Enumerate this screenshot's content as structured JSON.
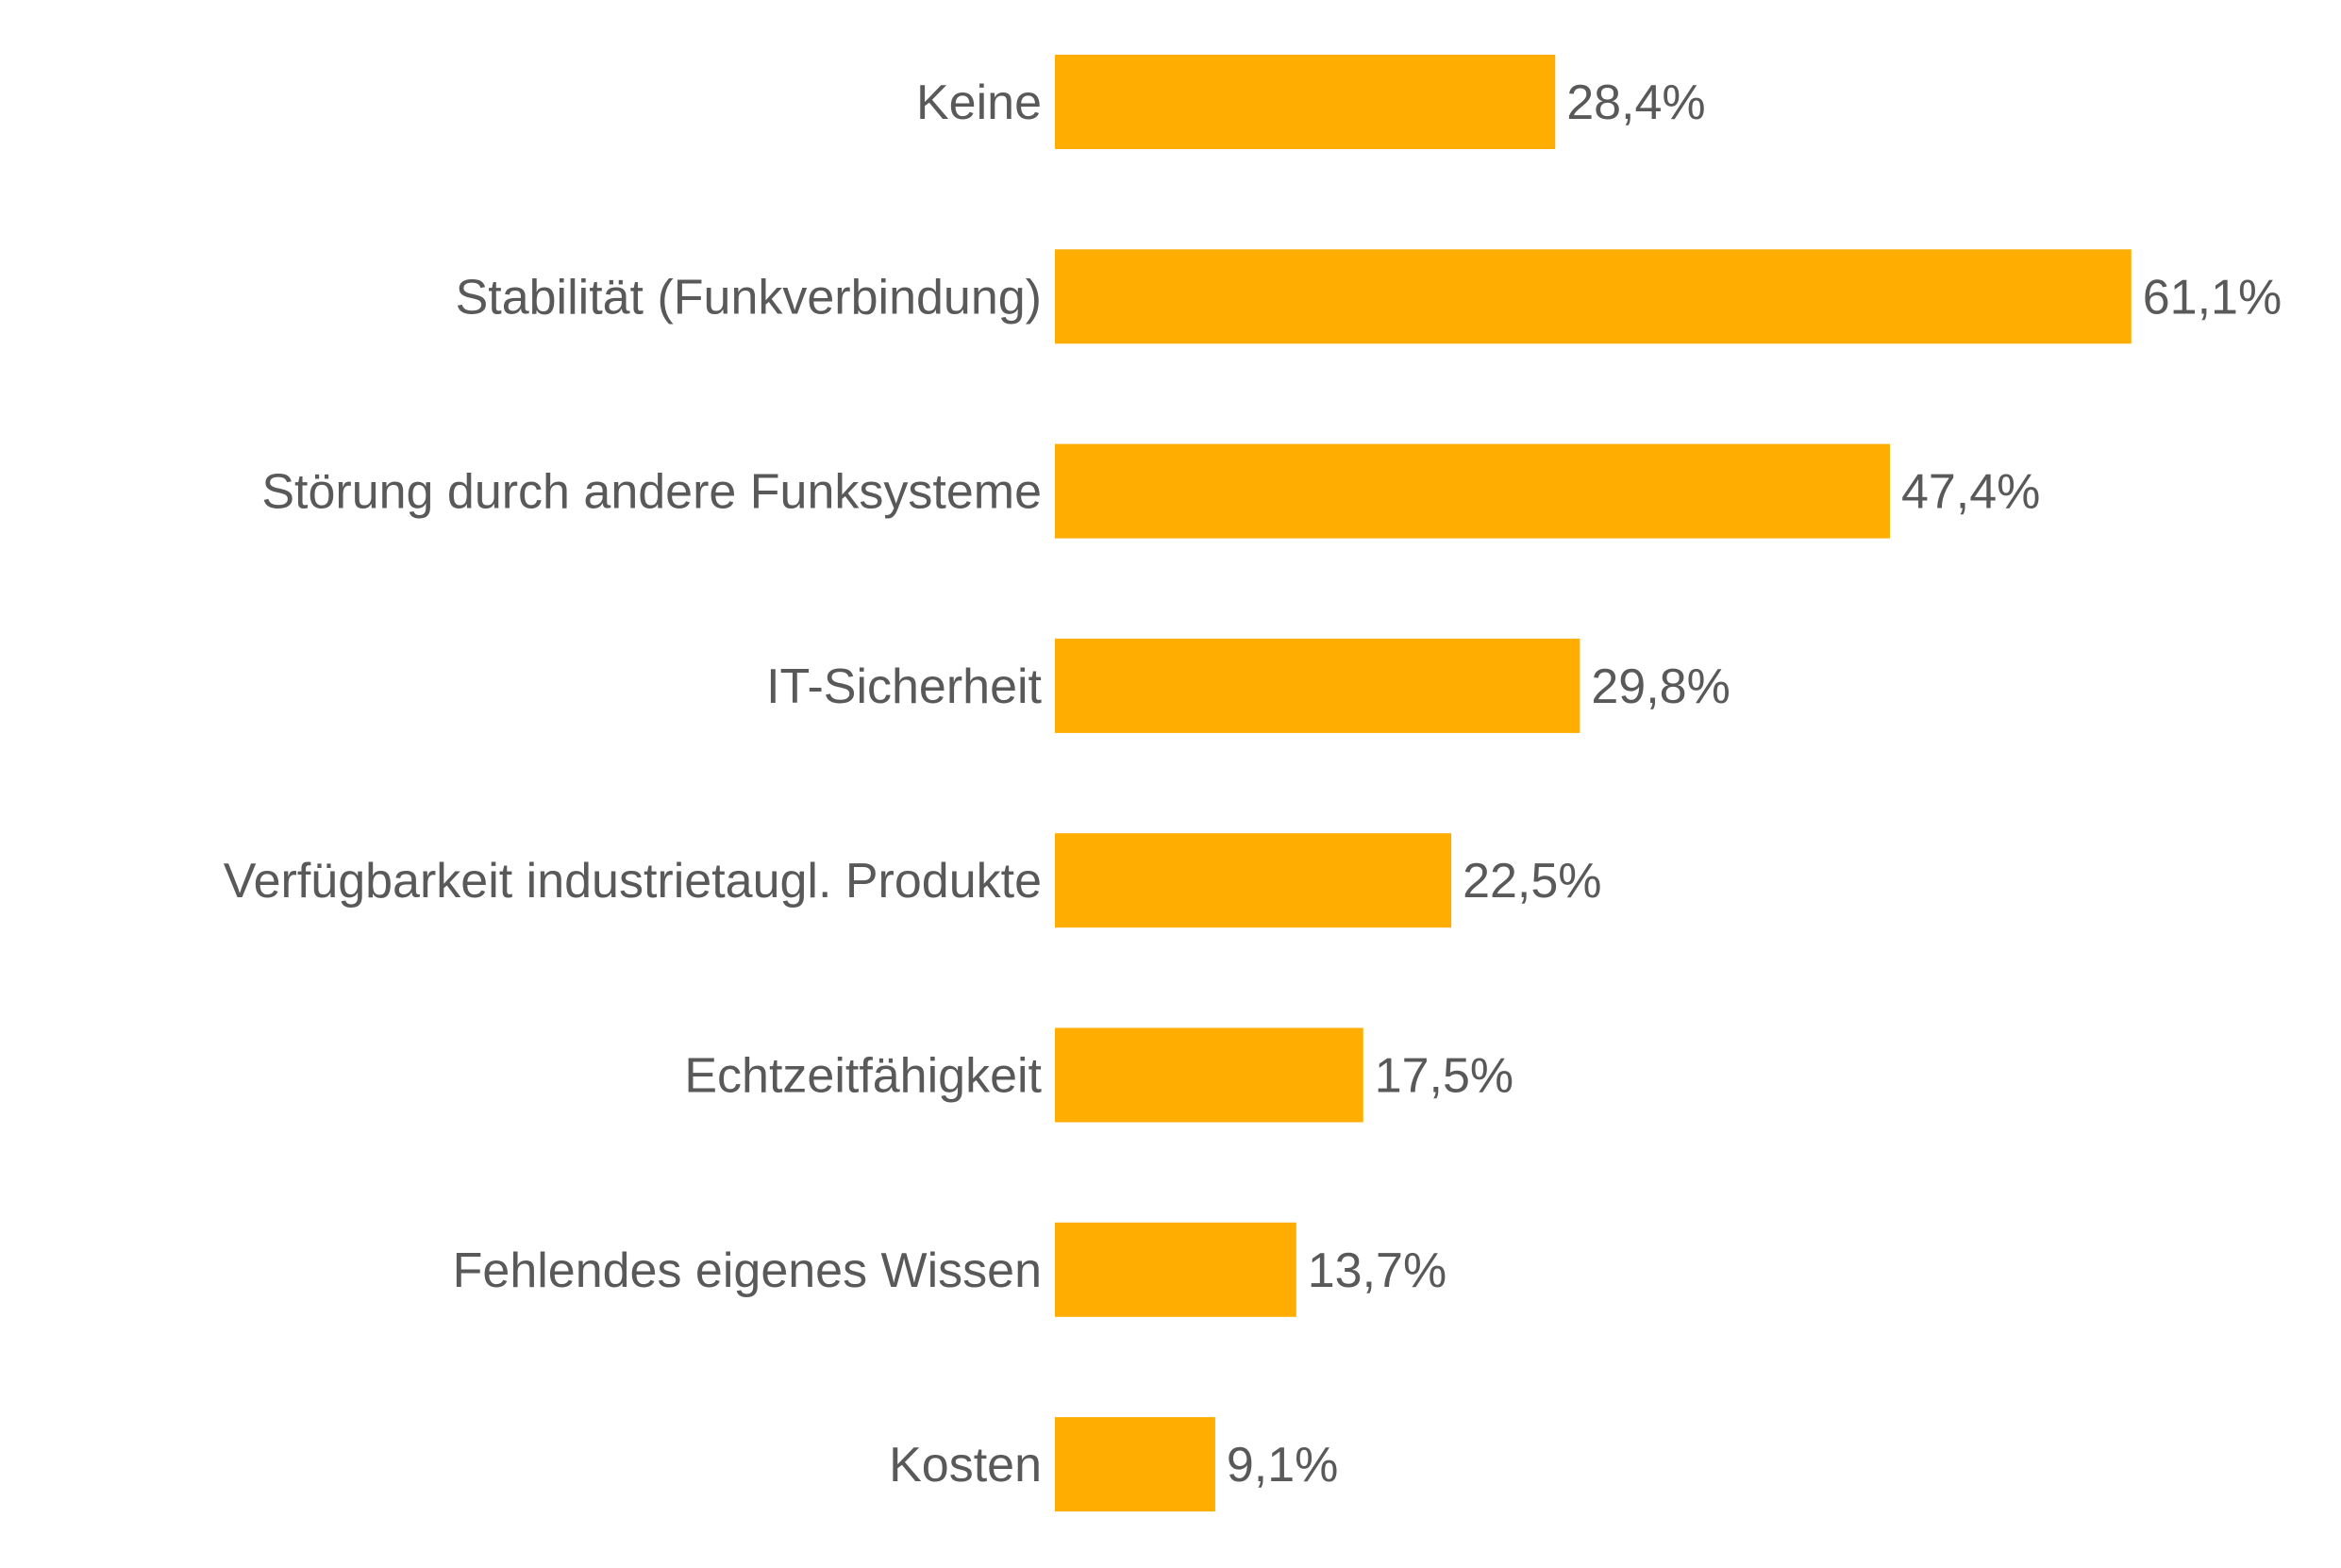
{
  "chart_data": {
    "type": "bar",
    "orientation": "horizontal",
    "categories": [
      "Keine",
      "Stabilität (Funkverbindung)",
      "Störung durch andere Funksysteme",
      "IT-Sicherheit",
      "Verfügbarkeit industrietaugl. Produkte",
      "Echtzeitfähigkeit",
      "Fehlendes eigenes Wissen",
      "Kosten"
    ],
    "values": [
      28.4,
      61.1,
      47.4,
      29.8,
      22.5,
      17.5,
      13.7,
      9.1
    ],
    "data_labels": [
      "28,4%",
      "61,1%",
      "47,4%",
      "29,8%",
      "22,5%",
      "17,5%",
      "13,7%",
      "9,1%"
    ],
    "unit": "%",
    "title": "",
    "xlabel": "",
    "ylabel": "",
    "xlim": [
      0,
      61.1
    ],
    "grid": false,
    "legend": "none",
    "bar_color": "#FFAD00",
    "text_color": "#595959"
  }
}
